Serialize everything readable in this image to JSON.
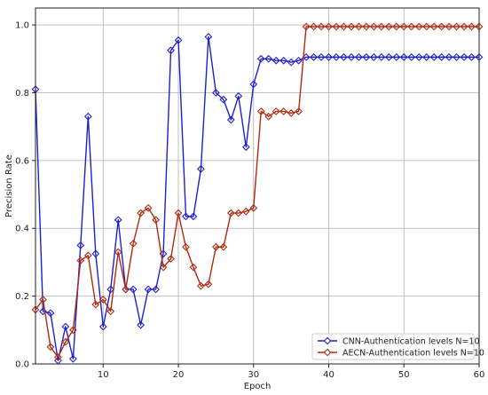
{
  "chart_data": {
    "type": "line",
    "title": "",
    "xlabel": "Epoch",
    "ylabel": "Precision Rate",
    "xlim": [
      1,
      60
    ],
    "ylim": [
      0,
      1.05
    ],
    "xticks": [
      10,
      20,
      30,
      40,
      50,
      60
    ],
    "yticks": [
      0.0,
      0.2,
      0.4,
      0.6,
      0.8,
      1.0
    ],
    "xtick_labels": [
      "10",
      "20",
      "30",
      "40",
      "50",
      "60"
    ],
    "ytick_labels": [
      "0.0",
      "0.2",
      "0.4",
      "0.6",
      "0.8",
      "1.0"
    ],
    "grid": true,
    "legend_position": "bottom-right",
    "series": [
      {
        "name": "CNN-Authentication levels N=10",
        "color": "#1f1fd0",
        "marker": "diamond",
        "x": [
          1,
          2,
          3,
          4,
          5,
          6,
          7,
          8,
          9,
          10,
          11,
          12,
          13,
          14,
          15,
          16,
          17,
          18,
          19,
          20,
          21,
          22,
          23,
          24,
          25,
          26,
          27,
          28,
          29,
          30,
          31,
          32,
          33,
          34,
          35,
          36,
          37,
          38,
          39,
          40,
          41,
          42,
          43,
          44,
          45,
          46,
          47,
          48,
          49,
          50,
          51,
          52,
          53,
          54,
          55,
          56,
          57,
          58,
          59,
          60
        ],
        "values": [
          0.81,
          0.155,
          0.15,
          0.01,
          0.11,
          0.015,
          0.35,
          0.73,
          0.325,
          0.11,
          0.22,
          0.425,
          0.22,
          0.22,
          0.115,
          0.22,
          0.22,
          0.325,
          0.925,
          0.955,
          0.435,
          0.435,
          0.575,
          0.965,
          0.8,
          0.78,
          0.72,
          0.79,
          0.64,
          0.825,
          0.9,
          0.9,
          0.895,
          0.895,
          0.89,
          0.895,
          0.905,
          0.905,
          0.905,
          0.905,
          0.905,
          0.905,
          0.905,
          0.905,
          0.905,
          0.905,
          0.905,
          0.905,
          0.905,
          0.905,
          0.905,
          0.905,
          0.905,
          0.905,
          0.905,
          0.905,
          0.905,
          0.905,
          0.905,
          0.905
        ]
      },
      {
        "name": "AECN-Authentication levels N=10",
        "color": "#b02a0f",
        "marker": "diamond",
        "x": [
          1,
          2,
          3,
          4,
          5,
          6,
          7,
          8,
          9,
          10,
          11,
          12,
          13,
          14,
          15,
          16,
          17,
          18,
          19,
          20,
          21,
          22,
          23,
          24,
          25,
          26,
          27,
          28,
          29,
          30,
          31,
          32,
          33,
          34,
          35,
          36,
          37,
          38,
          39,
          40,
          41,
          42,
          43,
          44,
          45,
          46,
          47,
          48,
          49,
          50,
          51,
          52,
          53,
          54,
          55,
          56,
          57,
          58,
          59,
          60
        ],
        "values": [
          0.16,
          0.19,
          0.05,
          0.02,
          0.065,
          0.1,
          0.305,
          0.32,
          0.175,
          0.19,
          0.155,
          0.33,
          0.22,
          0.355,
          0.445,
          0.46,
          0.425,
          0.285,
          0.31,
          0.445,
          0.345,
          0.285,
          0.23,
          0.235,
          0.345,
          0.345,
          0.445,
          0.445,
          0.45,
          0.46,
          0.745,
          0.73,
          0.745,
          0.745,
          0.74,
          0.745,
          0.995,
          0.995,
          0.995,
          0.995,
          0.995,
          0.995,
          0.995,
          0.995,
          0.995,
          0.995,
          0.995,
          0.995,
          0.995,
          0.995,
          0.995,
          0.995,
          0.995,
          0.995,
          0.995,
          0.995,
          0.995,
          0.995,
          0.995,
          0.995
        ]
      }
    ]
  }
}
